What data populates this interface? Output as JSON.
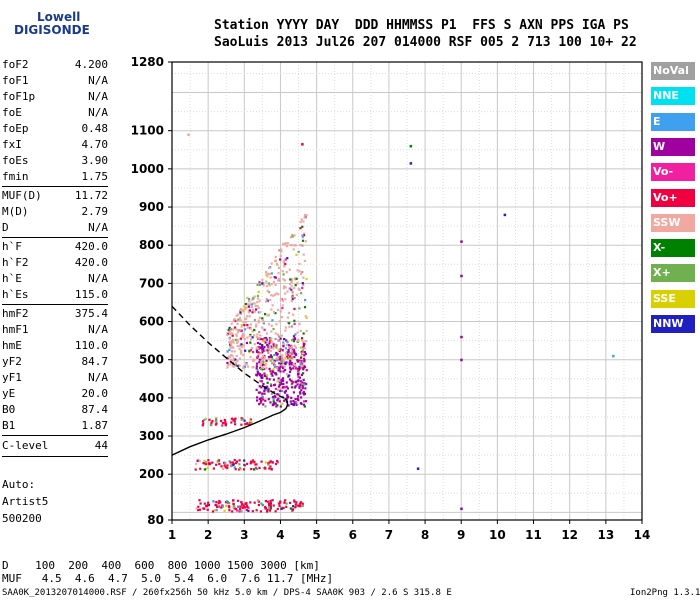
{
  "logo": {
    "line1": "Lowell",
    "line2": "DIGISONDE"
  },
  "header": {
    "line1": "Station YYYY DAY  DDD HHMMSS P1  FFS S AXN PPS IGA PS",
    "line2": "SaoLuis 2013 Jul26 207 014000 RSF 005 2 713 100 10+ 22"
  },
  "params_group1": [
    {
      "name": "foF2",
      "value": "4.200"
    },
    {
      "name": "foF1",
      "value": "N/A"
    },
    {
      "name": "foF1p",
      "value": "N/A"
    },
    {
      "name": "foE",
      "value": "N/A"
    },
    {
      "name": "foEp",
      "value": "0.48"
    },
    {
      "name": "fxI",
      "value": "4.70"
    },
    {
      "name": "foEs",
      "value": "3.90"
    },
    {
      "name": "fmin",
      "value": "1.75"
    }
  ],
  "params_group2": [
    {
      "name": "MUF(D)",
      "value": "11.72"
    },
    {
      "name": "M(D)",
      "value": "2.79"
    },
    {
      "name": "D",
      "value": "N/A"
    }
  ],
  "params_group3": [
    {
      "name": "h`F",
      "value": "420.0"
    },
    {
      "name": "h`F2",
      "value": "420.0"
    },
    {
      "name": "h`E",
      "value": "N/A"
    },
    {
      "name": "h`Es",
      "value": "115.0"
    }
  ],
  "params_group4": [
    {
      "name": "hmF2",
      "value": "375.4"
    },
    {
      "name": "hmF1",
      "value": "N/A"
    },
    {
      "name": "hmE",
      "value": "110.0"
    },
    {
      "name": "yF2",
      "value": "84.7"
    },
    {
      "name": "yF1",
      "value": "N/A"
    },
    {
      "name": "yE",
      "value": "20.0"
    },
    {
      "name": "B0",
      "value": "87.4"
    },
    {
      "name": "B1",
      "value": "1.87"
    }
  ],
  "clevel": {
    "name": "C-level",
    "value": "44"
  },
  "auto": {
    "line1": "Auto:",
    "line2": "Artist5",
    "line3": "500200"
  },
  "legend": [
    {
      "label": "NoVal",
      "color": "#a0a0a0"
    },
    {
      "label": "NNE",
      "color": "#00e0f0"
    },
    {
      "label": "E",
      "color": "#40a0f0"
    },
    {
      "label": "W",
      "color": "#a000a0"
    },
    {
      "label": "Vo-",
      "color": "#f020a0"
    },
    {
      "label": "Vo+",
      "color": "#f00040"
    },
    {
      "label": "SSW",
      "color": "#f0a8a0"
    },
    {
      "label": "X-",
      "color": "#008000"
    },
    {
      "label": "X+",
      "color": "#70b050"
    },
    {
      "label": "SSE",
      "color": "#d8d000"
    },
    {
      "label": "NNW",
      "color": "#2020c0"
    }
  ],
  "footer": {
    "d_line": "D    100  200  400  600  800 1000 1500 3000 [km]",
    "muf_line": "MUF   4.5  4.6  4.7  5.0  5.4  6.0  7.6 11.7 [MHz]",
    "file_line": "SAA0K_2013207014000.RSF / 260fx256h 50 kHz 5.0 km / DPS-4 SAA0K 903 / 2.6 S 315.8 E",
    "version": "Ion2Png 1.3.17"
  },
  "chart_data": {
    "type": "scatter",
    "xlim": [
      1,
      14
    ],
    "ylim": [
      80,
      1280
    ],
    "x_ticks": [
      1,
      2,
      3,
      4,
      5,
      6,
      7,
      8,
      9,
      10,
      11,
      12,
      13,
      14
    ],
    "y_ticks": [
      80,
      200,
      300,
      400,
      500,
      600,
      700,
      800,
      900,
      1000,
      1100,
      1280
    ],
    "grid": true,
    "f2_trace": {
      "x": [
        1.0,
        1.5,
        2.0,
        2.5,
        3.0,
        3.4,
        3.8,
        4.0,
        4.15,
        4.2,
        4.18,
        4.12
      ],
      "y": [
        250,
        272,
        290,
        305,
        322,
        338,
        355,
        362,
        372,
        382,
        392,
        398
      ]
    },
    "profile": {
      "x": [
        1.0,
        1.5,
        2.0,
        2.5,
        3.0,
        3.5,
        3.9,
        4.2
      ],
      "y": [
        640,
        590,
        545,
        505,
        465,
        432,
        408,
        395
      ]
    },
    "echo_bands": [
      {
        "x": [
          1.6,
          4.6
        ],
        "y": [
          105,
          135
        ],
        "color": "Vo+"
      },
      {
        "x": [
          1.6,
          3.9
        ],
        "y": [
          215,
          240
        ],
        "color": "Vo+"
      },
      {
        "x": [
          1.8,
          3.2
        ],
        "y": [
          330,
          350
        ],
        "color": "Vo+"
      },
      {
        "x": [
          3.3,
          4.7
        ],
        "y": [
          380,
          560
        ],
        "color": "W"
      },
      {
        "x": [
          2.5,
          4.7
        ],
        "y": [
          480,
          900
        ],
        "color": "SSW"
      }
    ],
    "isolated_points": [
      {
        "x": 9.0,
        "y": 810,
        "color": "W"
      },
      {
        "x": 9.0,
        "y": 720,
        "color": "W"
      },
      {
        "x": 9.0,
        "y": 560,
        "color": "W"
      },
      {
        "x": 9.0,
        "y": 500,
        "color": "W"
      },
      {
        "x": 7.6,
        "y": 1060,
        "color": "X-"
      },
      {
        "x": 7.6,
        "y": 1015,
        "color": "NNW"
      },
      {
        "x": 10.2,
        "y": 880,
        "color": "NNW"
      },
      {
        "x": 13.2,
        "y": 510,
        "color": "E"
      },
      {
        "x": 4.6,
        "y": 1065,
        "color": "Vo+"
      },
      {
        "x": 1.45,
        "y": 1090,
        "color": "SSW"
      },
      {
        "x": 9.0,
        "y": 110,
        "color": "W"
      },
      {
        "x": 7.8,
        "y": 215,
        "color": "NNW"
      }
    ]
  }
}
